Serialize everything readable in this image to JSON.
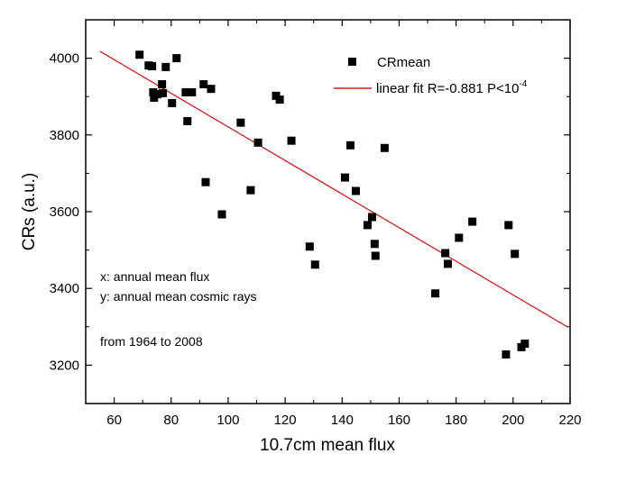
{
  "chart_data": {
    "type": "scatter",
    "title": "",
    "xlabel": "10.7cm mean flux",
    "ylabel": "CRs (a.u.)",
    "xlim": [
      50,
      220
    ],
    "ylim": [
      3100,
      4100
    ],
    "xticks": [
      60,
      80,
      100,
      120,
      140,
      160,
      180,
      200,
      220
    ],
    "xtick_labels": [
      "60",
      "80",
      "100",
      "120",
      "140",
      "160",
      "180",
      "200",
      "220"
    ],
    "yticks": [
      3200,
      3400,
      3600,
      3800,
      4000
    ],
    "ytick_labels": [
      "3200",
      "3400",
      "3600",
      "3800",
      "4000"
    ],
    "grid": false,
    "legend_position": "top-right",
    "series": [
      {
        "name": "CRmean",
        "kind": "scatter",
        "marker": "square",
        "color": "#000000",
        "points": [
          [
            68.9,
            4009
          ],
          [
            72.1,
            3981
          ],
          [
            73.3,
            3979
          ],
          [
            78.1,
            3977
          ],
          [
            81.9,
            4000
          ],
          [
            76.8,
            3932
          ],
          [
            73.7,
            3911
          ],
          [
            74.0,
            3897
          ],
          [
            75.2,
            3906
          ],
          [
            77.1,
            3909
          ],
          [
            80.3,
            3883
          ],
          [
            85.1,
            3911
          ],
          [
            87.3,
            3911
          ],
          [
            91.4,
            3932
          ],
          [
            94.0,
            3920
          ],
          [
            85.7,
            3836
          ],
          [
            104.4,
            3832
          ],
          [
            116.8,
            3902
          ],
          [
            118.1,
            3892
          ],
          [
            110.5,
            3780
          ],
          [
            122.2,
            3785
          ],
          [
            92.1,
            3677
          ],
          [
            107.9,
            3656
          ],
          [
            97.8,
            3593
          ],
          [
            142.9,
            3773
          ],
          [
            154.9,
            3766
          ],
          [
            141.0,
            3689
          ],
          [
            144.8,
            3654
          ],
          [
            150.5,
            3586
          ],
          [
            148.9,
            3565
          ],
          [
            151.4,
            3516
          ],
          [
            151.7,
            3485
          ],
          [
            128.6,
            3509
          ],
          [
            130.5,
            3462
          ],
          [
            185.7,
            3574
          ],
          [
            198.4,
            3565
          ],
          [
            181.0,
            3532
          ],
          [
            176.2,
            3492
          ],
          [
            177.1,
            3464
          ],
          [
            200.6,
            3490
          ],
          [
            172.7,
            3387
          ],
          [
            197.5,
            3228
          ],
          [
            202.9,
            3247
          ],
          [
            204.1,
            3256
          ]
        ]
      },
      {
        "name": "linear fit R=-0.881  P<10",
        "name_superscript": "-4",
        "kind": "line",
        "color": "#cc2222",
        "points": [
          [
            55,
            4018
          ],
          [
            219,
            3300
          ]
        ]
      }
    ],
    "annotations": [
      "x: annual mean flux",
      "y: annual mean cosmic rays",
      "from 1964 to 2008"
    ]
  }
}
